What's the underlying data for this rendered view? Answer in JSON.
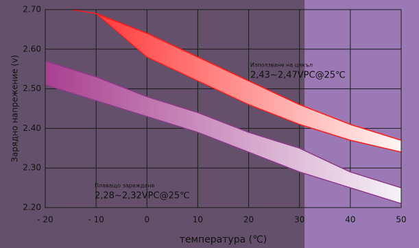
{
  "chart_data": {
    "type": "band",
    "xlabel": "температура (℃)",
    "ylabel": "Зарядно напрежение (v)",
    "xlim": [
      -20,
      50
    ],
    "ylim": [
      2.2,
      2.7
    ],
    "xticks": [
      {
        "value": -20,
        "label": "- 20"
      },
      {
        "value": -10,
        "label": "- 10"
      },
      0,
      10,
      20,
      30,
      40,
      50
    ],
    "yticks": [
      {
        "value": 2.2,
        "label": "2.20"
      },
      {
        "value": 2.3,
        "label": "2.30"
      },
      {
        "value": 2.4,
        "label": "2.40"
      },
      {
        "value": 2.5,
        "label": "2.50"
      },
      {
        "value": 2.6,
        "label": "2.60"
      },
      {
        "value": 2.7,
        "label": "2.70"
      }
    ],
    "grid": true,
    "background": "#64506a",
    "highlight_color": "#9b79b4",
    "highlight_xrange": [
      31,
      50
    ],
    "bands": [
      {
        "name": "Използване на цикъл",
        "label": "2,43~2,47VPC@25℃",
        "color": "#ff2a2a",
        "end_color": "#fff6f4",
        "stroke": "#ff1a1a",
        "upper": {
          "x": [
            -15,
            -10,
            0,
            10,
            20,
            30,
            40,
            50
          ],
          "values": [
            2.7,
            2.69,
            2.64,
            2.58,
            2.52,
            2.46,
            2.41,
            2.37
          ]
        },
        "lower": {
          "x": [
            -10,
            0,
            10,
            20,
            30,
            40,
            50
          ],
          "values": [
            2.69,
            2.58,
            2.52,
            2.46,
            2.41,
            2.37,
            2.34
          ]
        }
      },
      {
        "name": "Плаващо зареждане",
        "label": "2,28~2,32VPC@25℃",
        "color": "#a8408f",
        "end_color": "#f6f2f8",
        "stroke": "#8e3a8a",
        "upper": {
          "x": [
            -20,
            -10,
            0,
            10,
            20,
            30,
            40,
            50
          ],
          "values": [
            2.57,
            2.53,
            2.48,
            2.44,
            2.39,
            2.35,
            2.29,
            2.25
          ]
        },
        "lower": {
          "x": [
            -20,
            -10,
            0,
            10,
            20,
            30,
            40,
            50
          ],
          "values": [
            2.51,
            2.47,
            2.43,
            2.39,
            2.34,
            2.29,
            2.25,
            2.21
          ]
        }
      }
    ]
  }
}
